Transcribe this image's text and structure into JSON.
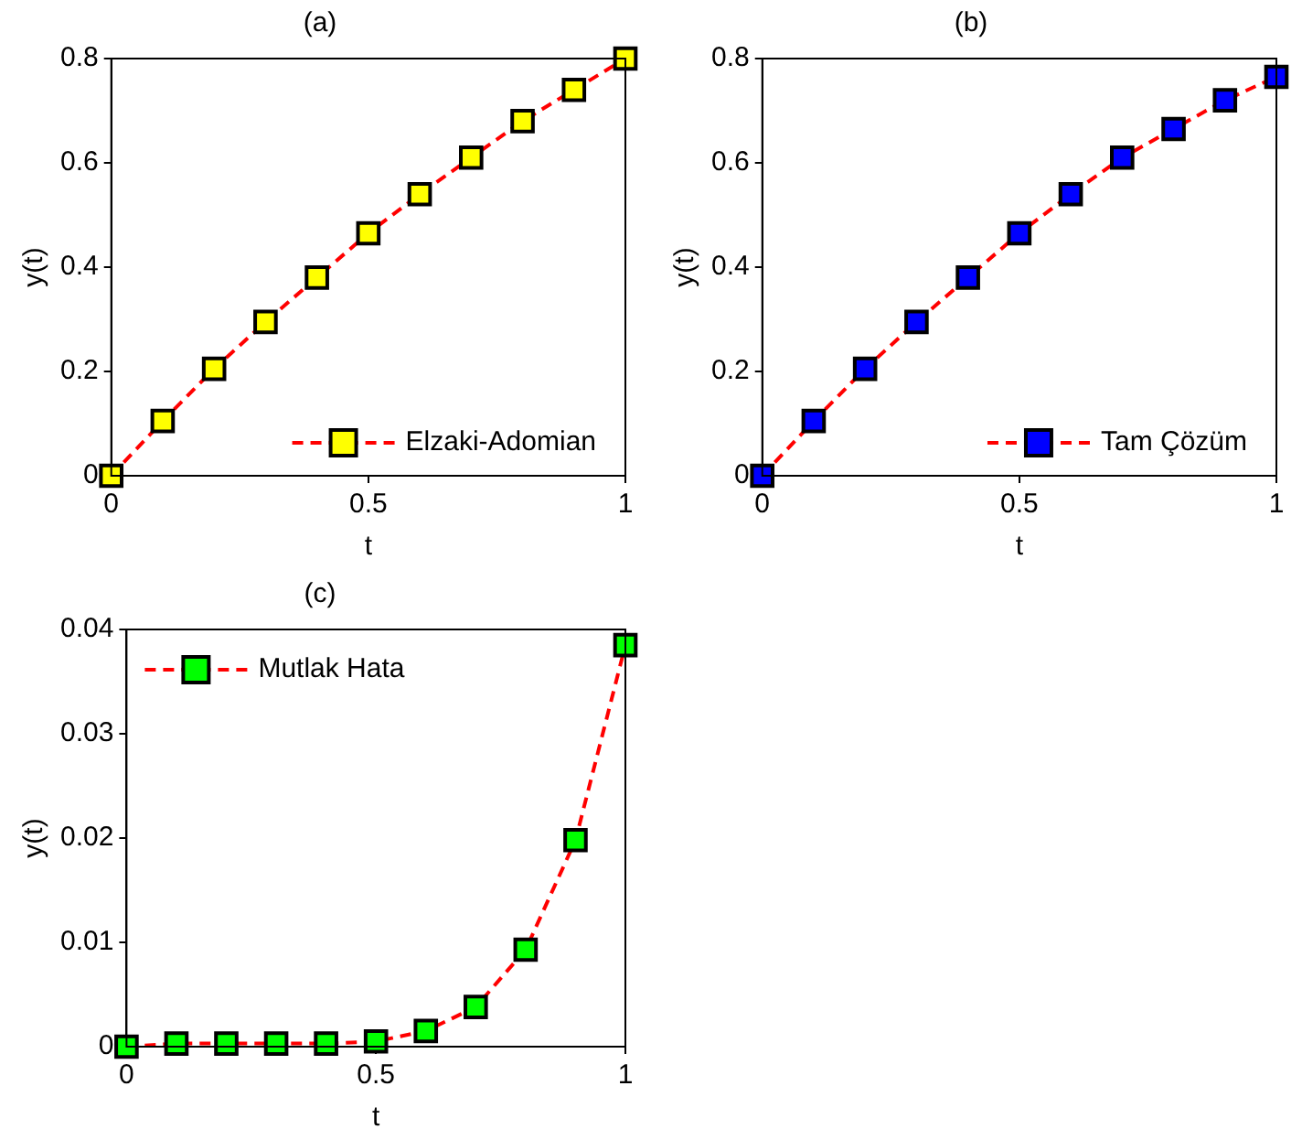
{
  "chart_data": [
    {
      "type": "line",
      "title": "(a)",
      "xlabel": "t",
      "ylabel": "y(t)",
      "x": [
        0,
        0.1,
        0.2,
        0.3,
        0.4,
        0.5,
        0.6,
        0.7,
        0.8,
        0.9,
        1
      ],
      "series": [
        {
          "name": "Elzaki-Adomian",
          "color": "#ff0000",
          "colors": [
            "#ffff00",
            "#ffff00",
            "#ffff00",
            "#ffff00",
            "#ffff00",
            "#ffff00",
            "#ffff00",
            "#ffff00",
            "#ffff00",
            "#ffff00",
            "#ffff00"
          ],
          "values": [
            0,
            0.105,
            0.205,
            0.295,
            0.38,
            0.465,
            0.54,
            0.61,
            0.68,
            0.74,
            0.8
          ]
        }
      ],
      "xlim": [
        0,
        1
      ],
      "xticks": [
        0,
        0.5,
        1
      ],
      "ylim": [
        0,
        0.8
      ],
      "yticks": [
        0,
        0.2,
        0.4,
        0.6,
        0.8
      ],
      "marker": "square",
      "line_style": "dashed",
      "legend": "bottom right",
      "grid": false
    },
    {
      "type": "line",
      "title": "(b)",
      "xlabel": "t",
      "ylabel": "y(t)",
      "x": [
        0,
        0.1,
        0.2,
        0.3,
        0.4,
        0.5,
        0.6,
        0.7,
        0.8,
        0.9,
        1
      ],
      "series": [
        {
          "name": "Tam Çözüm",
          "color": "#ff0000",
          "colors": [
            "#0000ff",
            "#0000ff",
            "#0000ff",
            "#0000ff",
            "#0000ff",
            "#0000ff",
            "#0000ff",
            "#0000ff",
            "#0000ff",
            "#0000ff",
            "#0000ff"
          ],
          "values": [
            0,
            0.105,
            0.205,
            0.295,
            0.38,
            0.465,
            0.54,
            0.61,
            0.665,
            0.72,
            0.765
          ]
        }
      ],
      "xlim": [
        0,
        1
      ],
      "xticks": [
        0,
        0.5,
        1
      ],
      "ylim": [
        0,
        0.8
      ],
      "yticks": [
        0,
        0.2,
        0.4,
        0.6,
        0.8
      ],
      "marker": "square",
      "line_style": "dashed",
      "legend": "bottom right",
      "grid": false
    },
    {
      "type": "line",
      "title": "(c)",
      "xlabel": "t",
      "ylabel": "y(t)",
      "x": [
        0,
        0.1,
        0.2,
        0.3,
        0.4,
        0.5,
        0.6,
        0.7,
        0.8,
        0.9,
        1
      ],
      "series": [
        {
          "name": "Mutlak Hata",
          "color": "#ff0000",
          "colors": [
            "#00ff00",
            "#00ff00",
            "#00ff00",
            "#00ff00",
            "#00ff00",
            "#00ff00",
            "#00ff00",
            "#00ff00",
            "#00ff00",
            "#00ff00",
            "#00ff00"
          ],
          "values": [
            0,
            0.0003,
            0.0003,
            0.0003,
            0.0003,
            0.0005,
            0.0015,
            0.0038,
            0.0093,
            0.0198,
            0.0385
          ]
        }
      ],
      "xlim": [
        0,
        1
      ],
      "xticks": [
        0,
        0.5,
        1
      ],
      "ylim": [
        0,
        0.04
      ],
      "yticks": [
        0,
        0.01,
        0.02,
        0.03,
        0.04
      ],
      "marker": "square",
      "line_style": "dashed",
      "legend": "top left",
      "grid": false
    }
  ]
}
